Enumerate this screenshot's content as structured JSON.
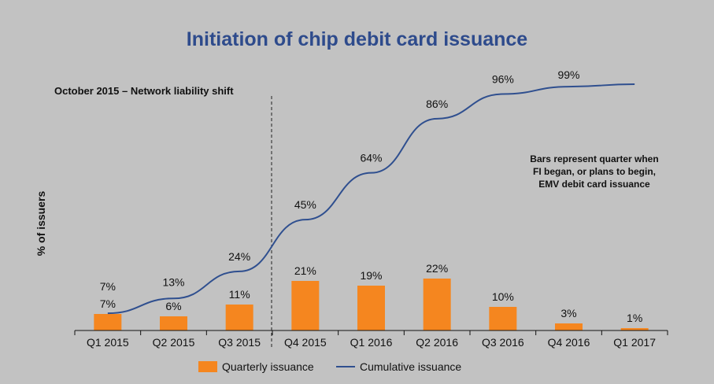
{
  "chart_data": {
    "type": "bar",
    "title": "Initiation of chip debit card issuance",
    "ylabel": "% of issuers",
    "categories": [
      "Q1 2015",
      "Q2 2015",
      "Q3 2015",
      "Q4 2015",
      "Q1 2016",
      "Q2 2016",
      "Q3 2016",
      "Q4 2016",
      "Q1 2017"
    ],
    "series": [
      {
        "name": "Quarterly issuance",
        "type": "bar",
        "color": "#f5861f",
        "values": [
          7,
          6,
          11,
          21,
          19,
          22,
          10,
          3,
          1
        ],
        "labels": [
          "7%",
          "6%",
          "11%",
          "21%",
          "19%",
          "22%",
          "10%",
          "3%",
          "1%"
        ]
      },
      {
        "name": "Cumulative issuance",
        "type": "line",
        "color": "#2f4f8f",
        "values": [
          7,
          13,
          24,
          45,
          64,
          86,
          96,
          99,
          100
        ],
        "labels": [
          "7%",
          "13%",
          "24%",
          "45%",
          "64%",
          "86%",
          "96%",
          "99%",
          ""
        ]
      }
    ],
    "annotations": {
      "event_line": "October 2015 – Network liability shift",
      "note_lines": [
        "Bars represent quarter when",
        "FI began, or plans to begin,",
        "EMV debit card issuance"
      ]
    },
    "legend_position": "bottom"
  }
}
